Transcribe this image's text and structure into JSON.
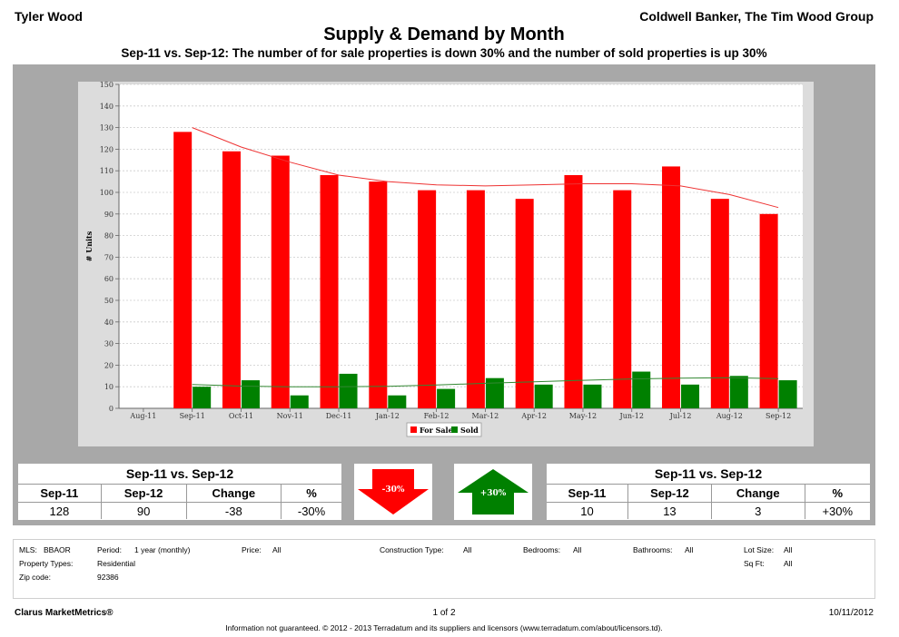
{
  "header": {
    "agent": "Tyler Wood",
    "brokerage": "Coldwell Banker, The Tim Wood Group",
    "title": "Supply & Demand by Month",
    "subtitle": "Sep-11 vs. Sep-12:  The number of for sale properties is down 30% and the number of sold properties is up 30%"
  },
  "chart_data": {
    "type": "bar",
    "categories": [
      "Aug-11",
      "Sep-11",
      "Oct-11",
      "Nov-11",
      "Dec-11",
      "Jan-12",
      "Feb-12",
      "Mar-12",
      "Apr-12",
      "May-12",
      "Jun-12",
      "Jul-12",
      "Aug-12",
      "Sep-12"
    ],
    "series": [
      {
        "name": "For Sale",
        "color": "#ff0000",
        "values": [
          null,
          128,
          119,
          117,
          108,
          105,
          101,
          101,
          97,
          108,
          101,
          112,
          97,
          90
        ]
      },
      {
        "name": "Sold",
        "color": "#008000",
        "values": [
          null,
          10,
          13,
          6,
          16,
          6,
          9,
          14,
          11,
          11,
          17,
          11,
          15,
          13
        ]
      }
    ],
    "trendlines": [
      {
        "series": "For Sale",
        "color": "#ee3333",
        "values": [
          null,
          130,
          121,
          114,
          108,
          105,
          103.5,
          103,
          103.5,
          104,
          104,
          103,
          99,
          93
        ]
      },
      {
        "series": "Sold",
        "color": "#338833",
        "values": [
          null,
          11,
          10.3,
          10,
          10,
          10.2,
          10.8,
          11.6,
          12.3,
          13,
          13.6,
          14,
          14.2,
          13.8
        ]
      }
    ],
    "ylabel": "# Units",
    "xlabel": "",
    "ylim": [
      0,
      150
    ],
    "yticks": [
      0,
      10,
      20,
      30,
      40,
      50,
      60,
      70,
      80,
      90,
      100,
      110,
      120,
      130,
      140,
      150
    ],
    "grid": true,
    "legend": "bottom-center"
  },
  "summary_left": {
    "title": "Sep-11 vs. Sep-12",
    "headers": [
      "Sep-11",
      "Sep-12",
      "Change",
      "%"
    ],
    "values": [
      "128",
      "90",
      "-38",
      "-30%"
    ]
  },
  "summary_right": {
    "title": "Sep-11 vs. Sep-12",
    "headers": [
      "Sep-11",
      "Sep-12",
      "Change",
      "%"
    ],
    "values": [
      "10",
      "13",
      "3",
      "+30%"
    ]
  },
  "arrows": {
    "down": {
      "label": "-30%",
      "color": "#ff0000",
      "icon": "arrow-down-icon"
    },
    "up": {
      "label": "+30%",
      "color": "#008000",
      "icon": "arrow-up-icon"
    }
  },
  "criteria": {
    "mls_label": "MLS:",
    "mls_value": "BBAOR",
    "period_label": "Period:",
    "period_value": "1 year (monthly)",
    "price_label": "Price:",
    "price_value": "All",
    "construction_label": "Construction Type:",
    "construction_value": "All",
    "bedrooms_label": "Bedrooms:",
    "bedrooms_value": "All",
    "bathrooms_label": "Bathrooms:",
    "bathrooms_value": "All",
    "lot_label": "Lot Size:",
    "lot_value": "All",
    "property_label": "Property Types:",
    "property_value": "Residential",
    "sqft_label": "Sq Ft:",
    "sqft_value": "All",
    "zip_label": "Zip code:",
    "zip_value": "92386"
  },
  "footer": {
    "brand": "Clarus MarketMetrics®",
    "page": "1 of 2",
    "date": "10/11/2012",
    "disclaimer": "Information not guaranteed.  © 2012 - 2013 Terradatum and its suppliers and licensors (www.terradatum.com/about/licensors.td)."
  }
}
